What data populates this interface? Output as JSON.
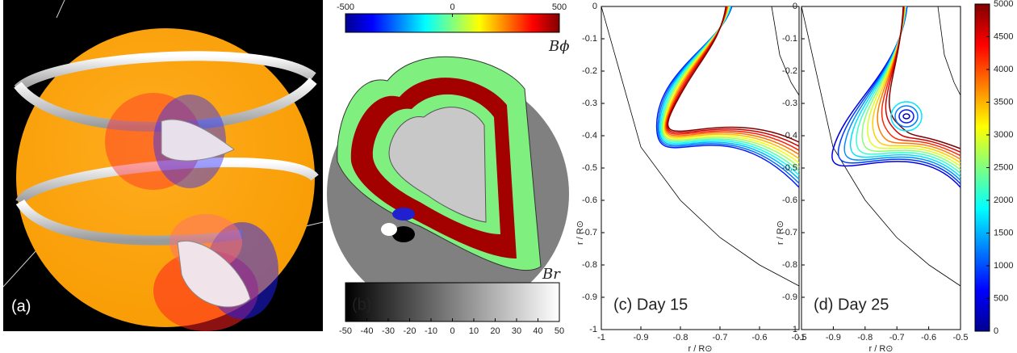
{
  "panels": [
    {
      "label": "(a)"
    },
    {
      "label": "(b)",
      "top_colorbar": {
        "label": "Bϕ",
        "lim": [
          -500,
          500
        ],
        "ticks": [
          -500,
          0,
          500
        ]
      },
      "bottom_colorbar": {
        "label": "Br",
        "lim": [
          -50,
          50
        ],
        "ticks": [
          -50,
          -40,
          -30,
          -20,
          -10,
          0,
          10,
          20,
          30,
          40,
          50
        ]
      }
    },
    {
      "label": "(c) Day 15",
      "xlabel": "r / R⊙",
      "ylabel": "r / R⊙",
      "xlim": [
        -1,
        -0.5
      ],
      "xticks": [
        -1,
        -0.9,
        -0.8,
        -0.7,
        -0.6,
        -0.5
      ],
      "ylim": [
        -1,
        0
      ],
      "yticks": [
        0,
        -0.1,
        -0.2,
        -0.3,
        -0.4,
        -0.5,
        -0.6,
        -0.7,
        -0.8,
        -0.9,
        -1
      ]
    },
    {
      "label": "(d) Day 25",
      "xlabel": "r / R⊙",
      "ylabel": "r / R⊙",
      "xlim": [
        -1,
        -0.5
      ],
      "xticks": [
        -1,
        -0.9,
        -0.8,
        -0.7,
        -0.6,
        -0.5
      ],
      "ylim": [
        -1,
        0
      ],
      "yticks": [
        0,
        -0.1,
        -0.2,
        -0.3,
        -0.4,
        -0.5,
        -0.6,
        -0.7,
        -0.8,
        -0.9,
        -1
      ]
    }
  ],
  "colorbar": {
    "lim": [
      0,
      5000
    ],
    "ticks": [
      0,
      500,
      1000,
      1500,
      2000,
      2500,
      3000,
      3500,
      4000,
      4500,
      5000
    ]
  }
}
